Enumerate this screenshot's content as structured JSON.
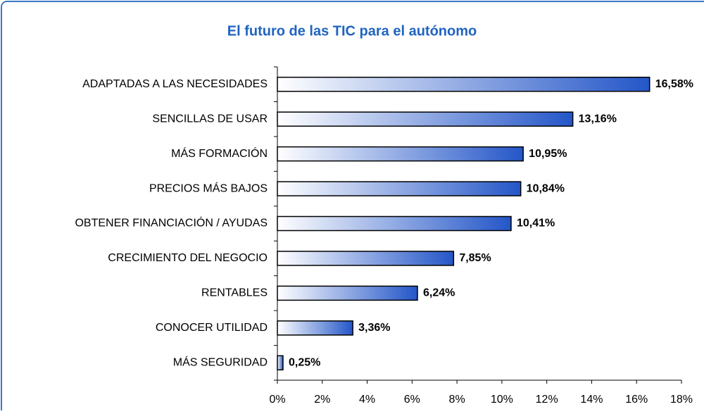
{
  "chart_data": {
    "type": "barh",
    "title": "El futuro de las TIC para el autónomo",
    "categories": [
      "ADAPTADAS A LAS NECESIDADES",
      "SENCILLAS DE USAR",
      "MÁS FORMACIÓN",
      "PRECIOS MÁS BAJOS",
      "OBTENER FINANCIACIÓN / AYUDAS",
      "CRECIMIENTO DEL NEGOCIO",
      "RENTABLES",
      "CONOCER UTILIDAD",
      "MÁS SEGURIDAD"
    ],
    "values": [
      16.58,
      13.16,
      10.95,
      10.84,
      10.41,
      7.85,
      6.24,
      3.36,
      0.25
    ],
    "value_labels": [
      "16,58%",
      "13,16%",
      "10,95%",
      "10,84%",
      "10,41%",
      "7,85%",
      "6,24%",
      "3,36%",
      "0,25%"
    ],
    "color": "#2456c8",
    "xlim": [
      0,
      18
    ],
    "xticks": [
      {
        "value": 0,
        "label": "0%"
      },
      {
        "value": 2,
        "label": "2%"
      },
      {
        "value": 4,
        "label": "4%"
      },
      {
        "value": 6,
        "label": "6%"
      },
      {
        "value": 8,
        "label": "8%"
      },
      {
        "value": 10,
        "label": "10%"
      },
      {
        "value": 12,
        "label": "12%"
      },
      {
        "value": 14,
        "label": "14%"
      },
      {
        "value": 16,
        "label": "16%"
      },
      {
        "value": 18,
        "label": "18%"
      }
    ],
    "grid": false
  }
}
